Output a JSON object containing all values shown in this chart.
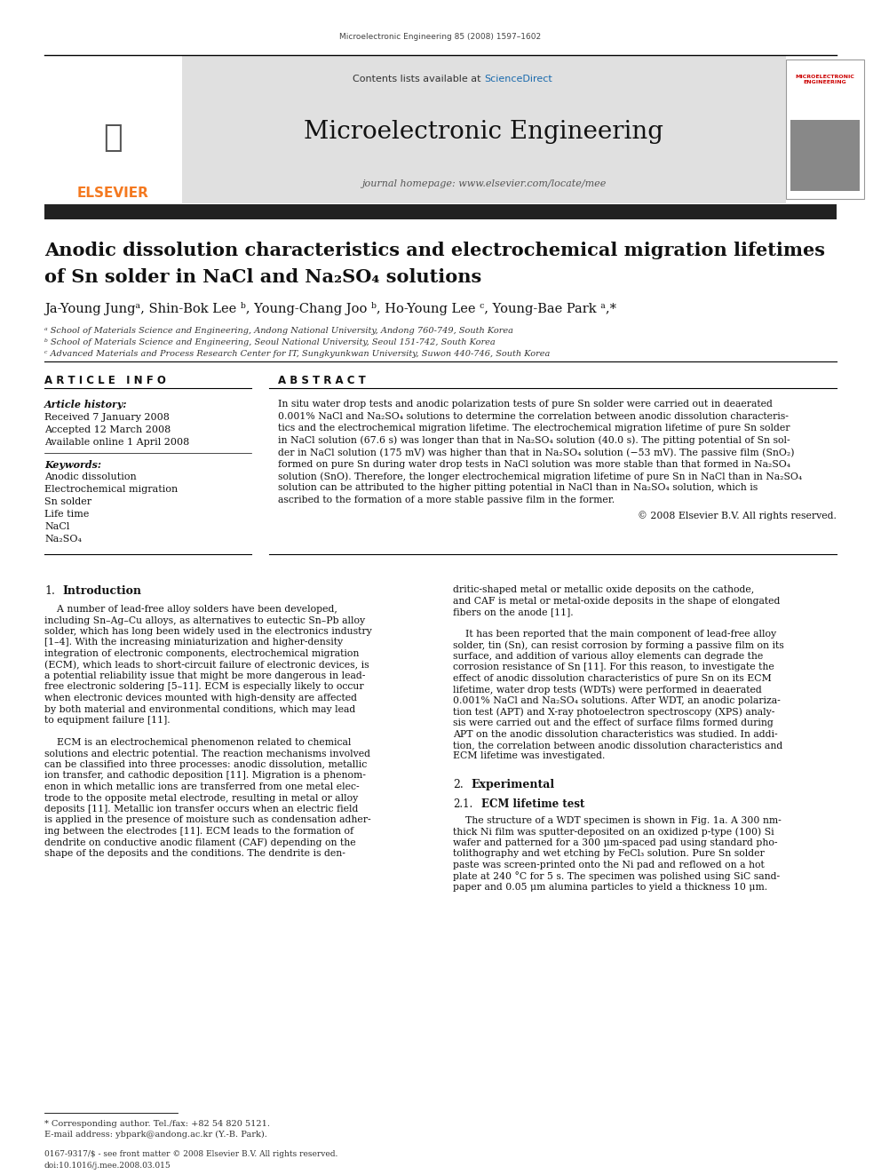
{
  "page_width": 9.92,
  "page_height": 13.23,
  "dpi": 100,
  "background_color": "#ffffff",
  "journal_ref": "Microelectronic Engineering 85 (2008) 1597–1602",
  "sciencedirect_color": "#1a6aad",
  "journal_name": "Microelectronic Engineering",
  "journal_homepage": "journal homepage: www.elsevier.com/locate/mee",
  "header_bg": "#e0e0e0",
  "elsevier_color": "#f47920",
  "dark_bar_color": "#222222",
  "article_title_line1": "Anodic dissolution characteristics and electrochemical migration lifetimes",
  "article_title_line2": "of Sn solder in NaCl and Na₂SO₄ solutions",
  "authors": "Ja-Young Jungᵃ, Shin-Bok Lee ᵇ, Young-Chang Joo ᵇ, Ho-Young Lee ᶜ, Young-Bae Park ᵃ,*",
  "affil_a": "ᵃ School of Materials Science and Engineering, Andong National University, Andong 760-749, South Korea",
  "affil_b": "ᵇ School of Materials Science and Engineering, Seoul National University, Seoul 151-742, South Korea",
  "affil_c": "ᶜ Advanced Materials and Process Research Center for IT, Sungkyunkwan University, Suwon 440-746, South Korea",
  "article_info_header": "A R T I C L E   I N F O",
  "abstract_header": "A B S T R A C T",
  "article_history_label": "Article history:",
  "received": "Received 7 January 2008",
  "accepted": "Accepted 12 March 2008",
  "available": "Available online 1 April 2008",
  "keywords_label": "Keywords:",
  "keywords": [
    "Anodic dissolution",
    "Electrochemical migration",
    "Sn solder",
    "Life time",
    "NaCl",
    "Na₂SO₄"
  ],
  "copyright": "© 2008 Elsevier B.V. All rights reserved.",
  "section1_label": "1.",
  "section1_title": "Introduction",
  "section2_label": "2.",
  "section2_title": "Experimental",
  "section21_label": "2.1.",
  "section21_title": "ECM lifetime test",
  "footnote_star": "* Corresponding author. Tel./fax: +82 54 820 5121.",
  "footnote_email": "E-mail address: ybpark@andong.ac.kr (Y.-B. Park).",
  "footer_left": "0167-9317/$ - see front matter © 2008 Elsevier B.V. All rights reserved.",
  "footer_doi": "doi:10.1016/j.mee.2008.03.015",
  "abs_lines": [
    "In situ water drop tests and anodic polarization tests of pure Sn solder were carried out in deaerated",
    "0.001% NaCl and Na₂SO₄ solutions to determine the correlation between anodic dissolution characteris-",
    "tics and the electrochemical migration lifetime. The electrochemical migration lifetime of pure Sn solder",
    "in NaCl solution (67.6 s) was longer than that in Na₂SO₄ solution (40.0 s). The pitting potential of Sn sol-",
    "der in NaCl solution (175 mV) was higher than that in Na₂SO₄ solution (−53 mV). The passive film (SnO₂)",
    "formed on pure Sn during water drop tests in NaCl solution was more stable than that formed in Na₂SO₄",
    "solution (SnO). Therefore, the longer electrochemical migration lifetime of pure Sn in NaCl than in Na₂SO₄",
    "solution can be attributed to the higher pitting potential in NaCl than in Na₂SO₄ solution, which is",
    "ascribed to the formation of a more stable passive film in the former."
  ],
  "col1_lines": [
    "    A number of lead-free alloy solders have been developed,",
    "including Sn–Ag–Cu alloys, as alternatives to eutectic Sn–Pb alloy",
    "solder, which has long been widely used in the electronics industry",
    "[1–4]. With the increasing miniaturization and higher-density",
    "integration of electronic components, electrochemical migration",
    "(ECM), which leads to short-circuit failure of electronic devices, is",
    "a potential reliability issue that might be more dangerous in lead-",
    "free electronic soldering [5–11]. ECM is especially likely to occur",
    "when electronic devices mounted with high-density are affected",
    "by both material and environmental conditions, which may lead",
    "to equipment failure [11].",
    "",
    "    ECM is an electrochemical phenomenon related to chemical",
    "solutions and electric potential. The reaction mechanisms involved",
    "can be classified into three processes: anodic dissolution, metallic",
    "ion transfer, and cathodic deposition [11]. Migration is a phenom-",
    "enon in which metallic ions are transferred from one metal elec-",
    "trode to the opposite metal electrode, resulting in metal or alloy",
    "deposits [11]. Metallic ion transfer occurs when an electric field",
    "is applied in the presence of moisture such as condensation adher-",
    "ing between the electrodes [11]. ECM leads to the formation of",
    "dendrite on conductive anodic filament (CAF) depending on the",
    "shape of the deposits and the conditions. The dendrite is den-"
  ],
  "col2_lines": [
    "dritic-shaped metal or metallic oxide deposits on the cathode,",
    "and CAF is metal or metal-oxide deposits in the shape of elongated",
    "fibers on the anode [11].",
    "",
    "    It has been reported that the main component of lead-free alloy",
    "solder, tin (Sn), can resist corrosion by forming a passive film on its",
    "surface, and addition of various alloy elements can degrade the",
    "corrosion resistance of Sn [11]. For this reason, to investigate the",
    "effect of anodic dissolution characteristics of pure Sn on its ECM",
    "lifetime, water drop tests (WDTs) were performed in deaerated",
    "0.001% NaCl and Na₂SO₄ solutions. After WDT, an anodic polariza-",
    "tion test (APT) and X-ray photoelectron spectroscopy (XPS) analy-",
    "sis were carried out and the effect of surface films formed during",
    "APT on the anodic dissolution characteristics was studied. In addi-",
    "tion, the correlation between anodic dissolution characteristics and",
    "ECM lifetime was investigated."
  ],
  "exp_lines": [
    "    The structure of a WDT specimen is shown in Fig. 1a. A 300 nm-",
    "thick Ni film was sputter-deposited on an oxidized p-type (100) Si",
    "wafer and patterned for a 300 μm-spaced pad using standard pho-",
    "tolithography and wet etching by FeCl₃ solution. Pure Sn solder",
    "paste was screen-printed onto the Ni pad and reflowed on a hot",
    "plate at 240 °C for 5 s. The specimen was polished using SiC sand-",
    "paper and 0.05 μm alumina particles to yield a thickness 10 μm."
  ]
}
